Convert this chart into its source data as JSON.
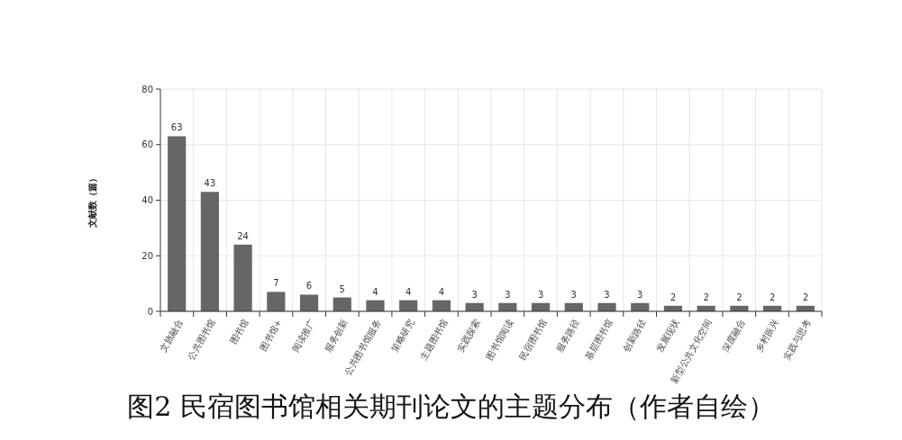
{
  "chart_data": {
    "type": "bar",
    "title": "图2 民宿图书馆相关期刊论文的主题分布（作者自绘）",
    "ylabel": "文献数（篇）",
    "categories": [
      "文旅融合",
      "公共图书馆",
      "图书馆",
      "图书馆+",
      "阅读推广",
      "服务创新",
      "公共图书馆服务",
      "策略研究",
      "主题图书馆",
      "实践探索",
      "图书馆阅读",
      "民宿图书馆",
      "服务路径",
      "基层图书馆",
      "创新路径",
      "发展现状",
      "新型公共文化空间",
      "深度融合",
      "乡村振兴",
      "实践与思考"
    ],
    "values": [
      63,
      43,
      24,
      7,
      6,
      5,
      4,
      4,
      4,
      3,
      3,
      3,
      3,
      3,
      3,
      2,
      2,
      2,
      2,
      2
    ],
    "color": "#666666",
    "ylim": [
      0,
      80
    ],
    "yticks": [
      0,
      20,
      40,
      60,
      80
    ],
    "grid": true,
    "data_labels": true
  }
}
